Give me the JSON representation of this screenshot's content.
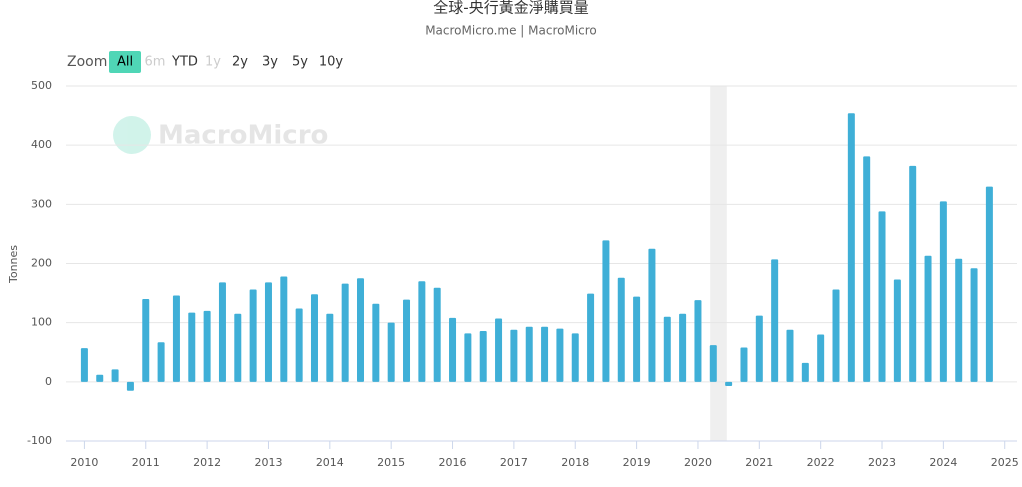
{
  "chart_data": {
    "type": "bar",
    "title": "全球-央行黃金淨購買量",
    "subtitle": "MacroMicro.me | MacroMicro",
    "watermark": "MacroMicro",
    "zoom_label": "Zoom",
    "zoom_buttons": [
      "All",
      "6m",
      "YTD",
      "1y",
      "2y",
      "3y",
      "5y",
      "10y"
    ],
    "y_label": "Tonnes",
    "color": "#3fafd7",
    "grid": true,
    "ylim": [
      -100,
      500
    ],
    "yticks": [
      -100,
      0,
      100,
      200,
      300,
      400,
      500
    ],
    "xlim": [
      2009.7,
      2025.2
    ],
    "xticks": [
      2010,
      2011,
      2012,
      2013,
      2014,
      2015,
      2016,
      2017,
      2018,
      2019,
      2020,
      2021,
      2022,
      2023,
      2024,
      2025
    ],
    "highlight_x": [
      2020.2,
      2020.47
    ],
    "x": [
      2010,
      2010.25,
      2010.5,
      2010.75,
      2011,
      2011.25,
      2011.5,
      2011.75,
      2012,
      2012.25,
      2012.5,
      2012.75,
      2013,
      2013.25,
      2013.5,
      2013.75,
      2014,
      2014.25,
      2014.5,
      2014.75,
      2015,
      2015.25,
      2015.5,
      2015.75,
      2016,
      2016.25,
      2016.5,
      2016.75,
      2017,
      2017.25,
      2017.5,
      2017.75,
      2018,
      2018.25,
      2018.5,
      2018.75,
      2019,
      2019.25,
      2019.5,
      2019.75,
      2020,
      2020.25,
      2020.5,
      2020.75,
      2021,
      2021.25,
      2021.5,
      2021.75,
      2022,
      2022.25,
      2022.5,
      2022.75,
      2023,
      2023.25,
      2023.5,
      2023.75,
      2024,
      2024.25,
      2024.5,
      2024.75
    ],
    "values": [
      57,
      12,
      21,
      -15,
      140,
      67,
      146,
      117,
      120,
      168,
      115,
      156,
      168,
      178,
      124,
      148,
      115,
      166,
      175,
      132,
      100,
      139,
      170,
      159,
      108,
      82,
      86,
      107,
      88,
      93,
      93,
      90,
      82,
      149,
      239,
      176,
      144,
      225,
      110,
      115,
      138,
      62,
      -7,
      58,
      112,
      207,
      88,
      32,
      80,
      156,
      454,
      381,
      288,
      173,
      365,
      213,
      305,
      208,
      192,
      330
    ]
  }
}
